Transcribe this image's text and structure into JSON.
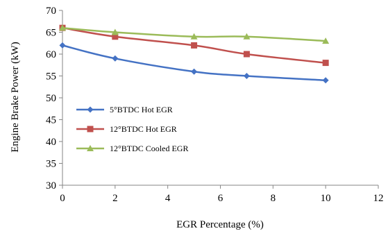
{
  "chart_data": {
    "type": "line",
    "title": "",
    "xlabel": "EGR Percentage (%)",
    "ylabel": "Engine Brake Power (kW)",
    "xlim": [
      0,
      12
    ],
    "ylim": [
      30,
      70
    ],
    "xticks": [
      0,
      2,
      4,
      6,
      8,
      10,
      12
    ],
    "yticks": [
      30,
      35,
      40,
      45,
      50,
      55,
      60,
      65,
      70
    ],
    "x": [
      0,
      2,
      5,
      7,
      10
    ],
    "grid": false,
    "legend_position": "center-left",
    "series": [
      {
        "name": "5°BTDC Hot EGR",
        "values": [
          62,
          59,
          56,
          55,
          54
        ],
        "color": "#4472C4",
        "marker": "diamond"
      },
      {
        "name": "12°BTDC Hot EGR",
        "values": [
          66,
          64,
          62,
          60,
          58
        ],
        "color": "#C0504D",
        "marker": "square"
      },
      {
        "name": "12°BTDC Cooled EGR",
        "values": [
          66,
          65,
          64,
          64,
          63
        ],
        "color": "#9BBB59",
        "marker": "triangle"
      }
    ]
  }
}
